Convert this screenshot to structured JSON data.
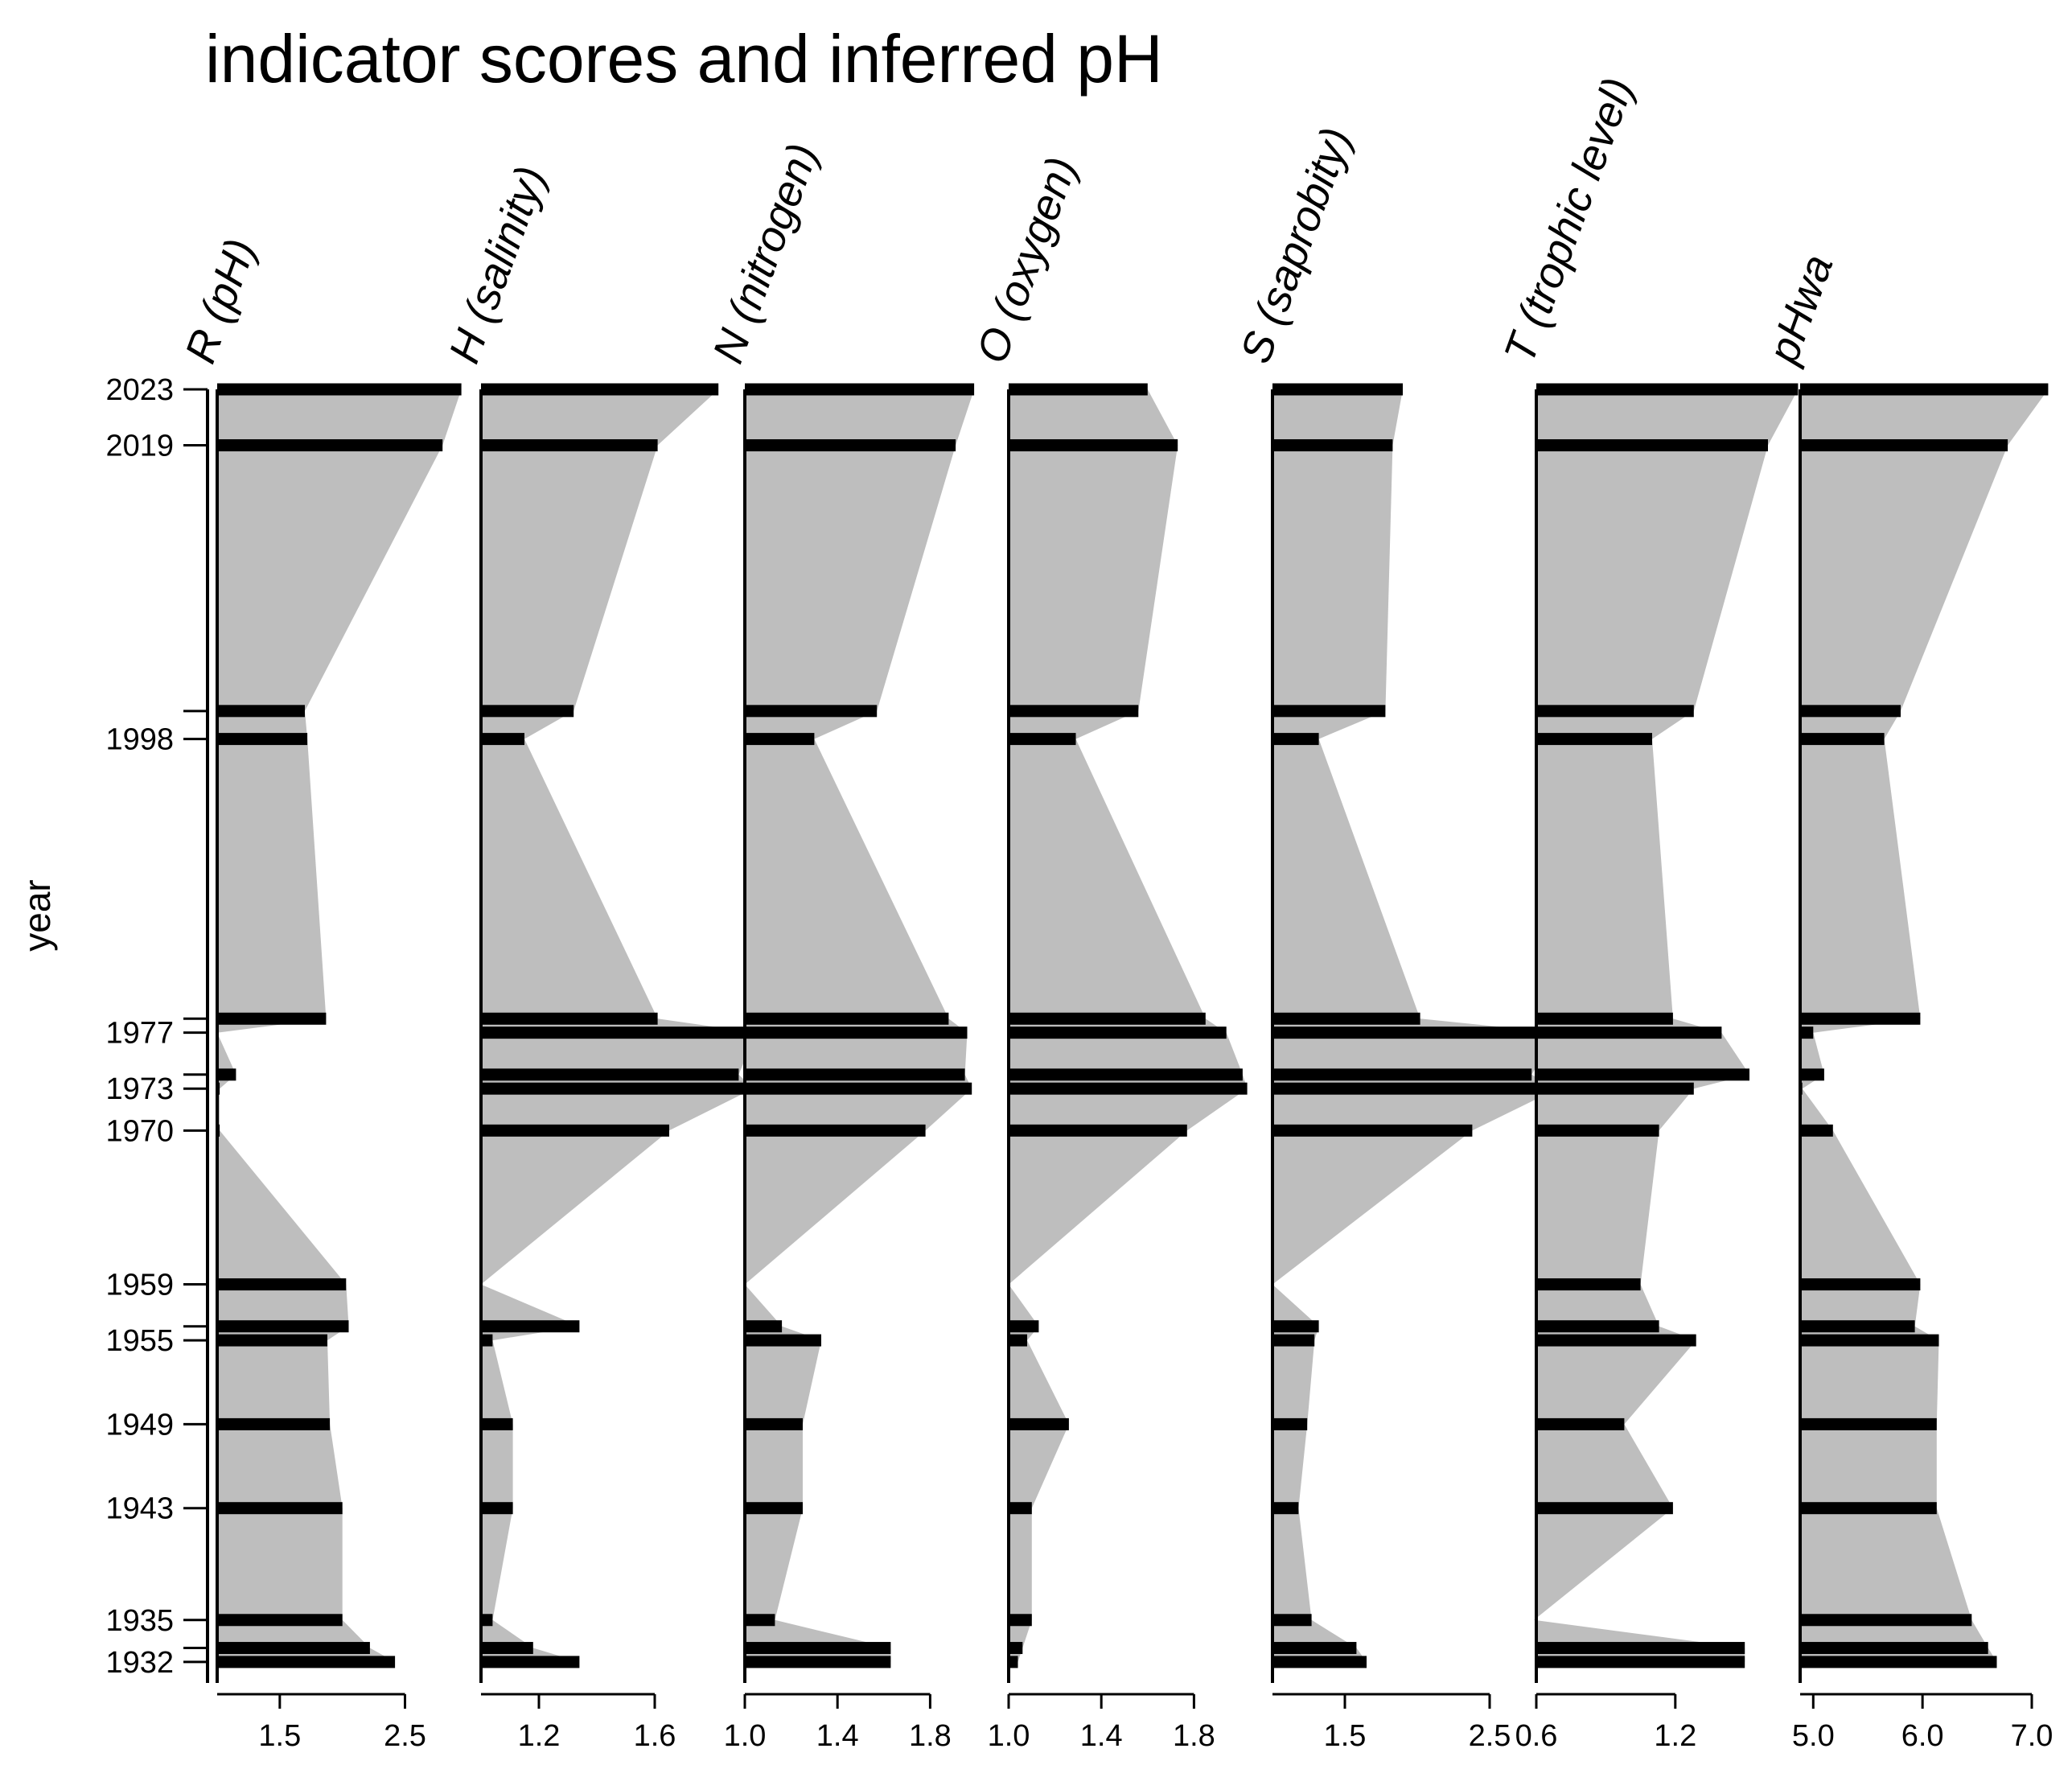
{
  "chart_data": {
    "type": "stratigraphic-area-bar",
    "title": "indicator scores and inferred pH",
    "ylabel": "year",
    "y_ticks": [
      2023,
      2019,
      1998,
      1977,
      1973,
      1970,
      1959,
      1955,
      1949,
      1943,
      1935,
      1932
    ],
    "ylim": [
      1930.5,
      2023
    ],
    "years": [
      2023,
      2019,
      2000,
      1998,
      1978,
      1977,
      1974,
      1973,
      1970,
      1959,
      1956,
      1955,
      1949,
      1943,
      1935,
      1933,
      1932
    ],
    "colors": {
      "area": "#bebebe",
      "bar": "#000000",
      "axis": "#000000"
    },
    "panels": [
      {
        "label": "R (pH)",
        "xlim": [
          1.0,
          2.85
        ],
        "tick_values": [
          1.5,
          2.5
        ],
        "tick_labels": [
          "1.5",
          "2.5"
        ],
        "values": [
          2.95,
          2.8,
          1.7,
          1.72,
          1.87,
          1.0,
          1.15,
          1.02,
          1.02,
          2.03,
          2.05,
          1.88,
          1.9,
          2.0,
          2.0,
          2.22,
          2.42
        ]
      },
      {
        "label": "H (salinity)",
        "xlim": [
          1.0,
          1.8
        ],
        "tick_values": [
          1.2,
          1.6
        ],
        "tick_labels": [
          "1.2",
          "1.6"
        ],
        "values": [
          1.82,
          1.61,
          1.32,
          1.15,
          1.61,
          1.95,
          1.89,
          1.94,
          1.65,
          1.0,
          1.34,
          1.04,
          1.11,
          1.11,
          1.04,
          1.18,
          1.34
        ]
      },
      {
        "label": "N (nitrogen)",
        "xlim": [
          1.0,
          2.0
        ],
        "tick_values": [
          1.0,
          1.4,
          1.8
        ],
        "tick_labels": [
          "1.0",
          "1.4",
          "1.8"
        ],
        "values": [
          1.99,
          1.91,
          1.57,
          1.3,
          1.88,
          1.96,
          1.95,
          1.98,
          1.78,
          1.0,
          1.16,
          1.33,
          1.25,
          1.25,
          1.13,
          1.63,
          1.63
        ]
      },
      {
        "label": "O (oxygen)",
        "xlim": [
          1.0,
          2.0
        ],
        "tick_values": [
          1.0,
          1.4,
          1.8
        ],
        "tick_labels": [
          "1.0",
          "1.4",
          "1.8"
        ],
        "values": [
          1.6,
          1.73,
          1.56,
          1.29,
          1.85,
          1.94,
          2.01,
          2.03,
          1.77,
          1.0,
          1.13,
          1.08,
          1.26,
          1.1,
          1.1,
          1.06,
          1.04
        ]
      },
      {
        "label": "S (saprobity)",
        "xlim": [
          1.0,
          2.6
        ],
        "tick_values": [
          1.5,
          2.5
        ],
        "tick_labels": [
          "1.5",
          "2.5"
        ],
        "values": [
          1.9,
          1.83,
          1.78,
          1.32,
          2.02,
          2.97,
          2.79,
          2.97,
          2.38,
          1.0,
          1.32,
          1.29,
          1.24,
          1.18,
          1.27,
          1.58,
          1.65
        ]
      },
      {
        "label": "T (trophic level)",
        "xlim": [
          0.6,
          1.6
        ],
        "tick_values": [
          0.6,
          1.2
        ],
        "tick_labels": [
          "0.6",
          "1.2"
        ],
        "values": [
          1.73,
          1.6,
          1.28,
          1.1,
          1.19,
          1.4,
          1.52,
          1.28,
          1.13,
          1.05,
          1.13,
          1.29,
          0.98,
          1.19,
          0.59,
          1.5,
          1.5
        ]
      },
      {
        "label": "pHwa",
        "xlim": [
          4.88,
          7.0
        ],
        "tick_values": [
          5.0,
          6.0,
          7.0
        ],
        "tick_labels": [
          "5.0",
          "6.0",
          "7.0"
        ],
        "values": [
          7.15,
          6.78,
          5.8,
          5.65,
          5.98,
          5.0,
          5.1,
          4.9,
          5.18,
          5.98,
          5.93,
          6.15,
          6.13,
          6.13,
          6.45,
          6.6,
          6.68
        ]
      }
    ]
  }
}
